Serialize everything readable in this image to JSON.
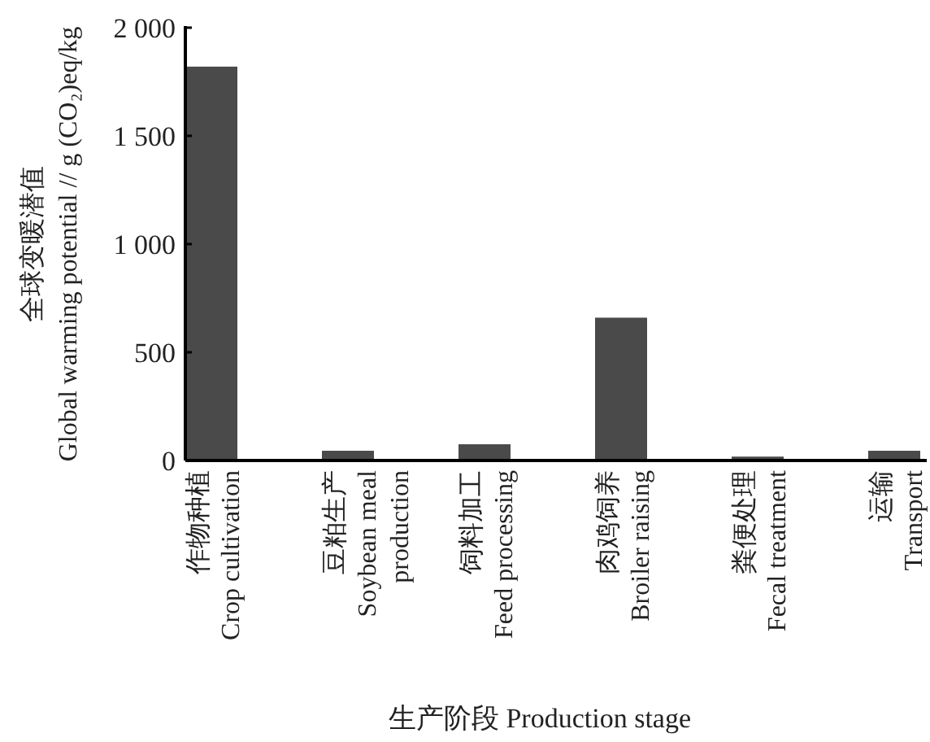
{
  "chart_data": {
    "type": "bar",
    "categories": [
      "作物种植\nCrop cultivation",
      "豆粕生产\nSoybean meal\nproduction",
      "饲料加工\nFeed processing",
      "肉鸡饲养\nBroiler raising",
      "粪便处理\nFecal treatment",
      "运输\nTransport"
    ],
    "values": [
      1820,
      45,
      75,
      660,
      18,
      45
    ],
    "color": "#4a4a4a",
    "xlabel": "生产阶段 Production stage",
    "ylabel": "全球变暖潜值\nGlobal warming potential // g (CO₂)eq/kg",
    "ylim": [
      0,
      2000
    ],
    "yticks": [
      {
        "value": 0,
        "label": "0"
      },
      {
        "value": 500,
        "label": "500"
      },
      {
        "value": 1000,
        "label": "1 000"
      },
      {
        "value": 1500,
        "label": "1 500"
      },
      {
        "value": 2000,
        "label": "2 000"
      }
    ],
    "grid": false
  }
}
